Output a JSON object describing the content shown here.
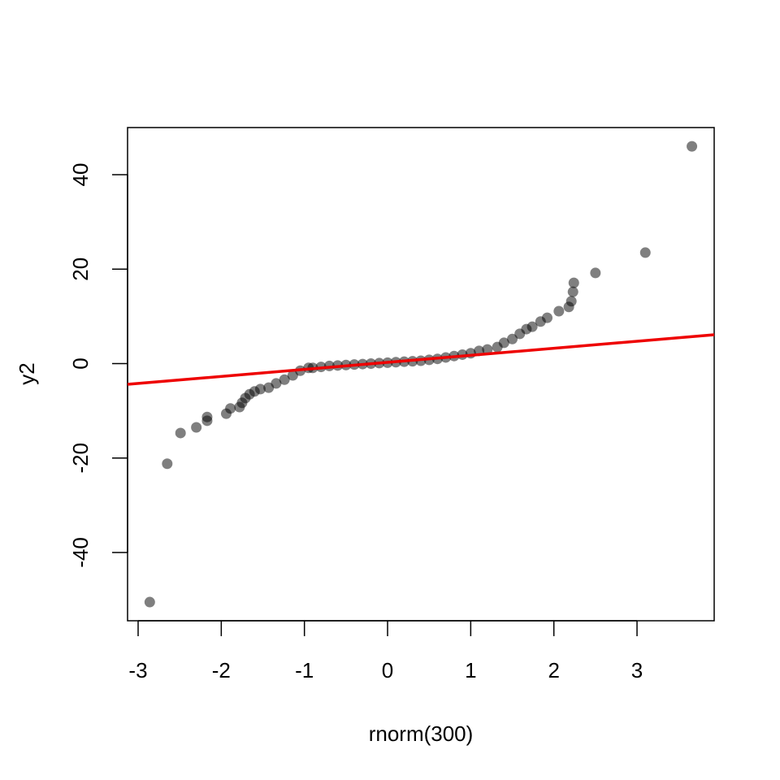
{
  "chart_data": {
    "type": "scatter",
    "x_label": "rnorm(300)",
    "y_label": "y2",
    "xlim": [
      -3.127,
      3.928
    ],
    "ylim": [
      -54.45,
      49.98
    ],
    "xticks": [
      -3,
      -2,
      -1,
      0,
      1,
      2,
      3
    ],
    "yticks": [
      -40,
      -20,
      0,
      20,
      40
    ],
    "series": [
      {
        "color": "rgba(0,0,0,0.5)",
        "x": [
          -2.86,
          -2.65,
          -2.49,
          -2.3,
          -2.17,
          -2.17,
          -1.94,
          -1.89,
          -1.78,
          -1.75,
          -1.71,
          -1.66,
          -1.6,
          -1.53,
          -1.43,
          -1.34,
          -1.24,
          -1.14,
          -1.05,
          -0.95,
          -0.9,
          -0.8,
          -0.7,
          -0.6,
          -0.5,
          -0.4,
          -0.3,
          -0.2,
          -0.1,
          0,
          0.1,
          0.2,
          0.3,
          0.4,
          0.5,
          0.6,
          0.7,
          0.8,
          0.9,
          1.0,
          1.1,
          1.2,
          1.32,
          1.4,
          1.5,
          1.59,
          1.67,
          1.74,
          1.84,
          1.92,
          2.06,
          2.18,
          2.21,
          2.23,
          2.24,
          2.5,
          3.1,
          3.66
        ],
        "values": [
          -50.5,
          -21.2,
          -14.7,
          -13.5,
          -12.1,
          -11.3,
          -10.6,
          -9.5,
          -9.2,
          -8.3,
          -7.3,
          -6.5,
          -5.9,
          -5.4,
          -5.1,
          -4.2,
          -3.4,
          -2.5,
          -1.5,
          -0.9,
          -0.9,
          -0.7,
          -0.5,
          -0.4,
          -0.3,
          -0.2,
          -0.1,
          0,
          0.1,
          0.2,
          0.3,
          0.4,
          0.5,
          0.6,
          0.8,
          1.0,
          1.3,
          1.6,
          1.9,
          2.2,
          2.7,
          3.0,
          3.5,
          4.4,
          5.2,
          6.3,
          7.3,
          7.8,
          8.9,
          9.7,
          11.1,
          12.0,
          13.2,
          15.2,
          17.1,
          19.2,
          23.5,
          46.0
        ]
      }
    ],
    "reference_line": {
      "color": "#ee0000",
      "x": [
        -3.127,
        3.928
      ],
      "y": [
        -4.39,
        6.11
      ]
    }
  }
}
